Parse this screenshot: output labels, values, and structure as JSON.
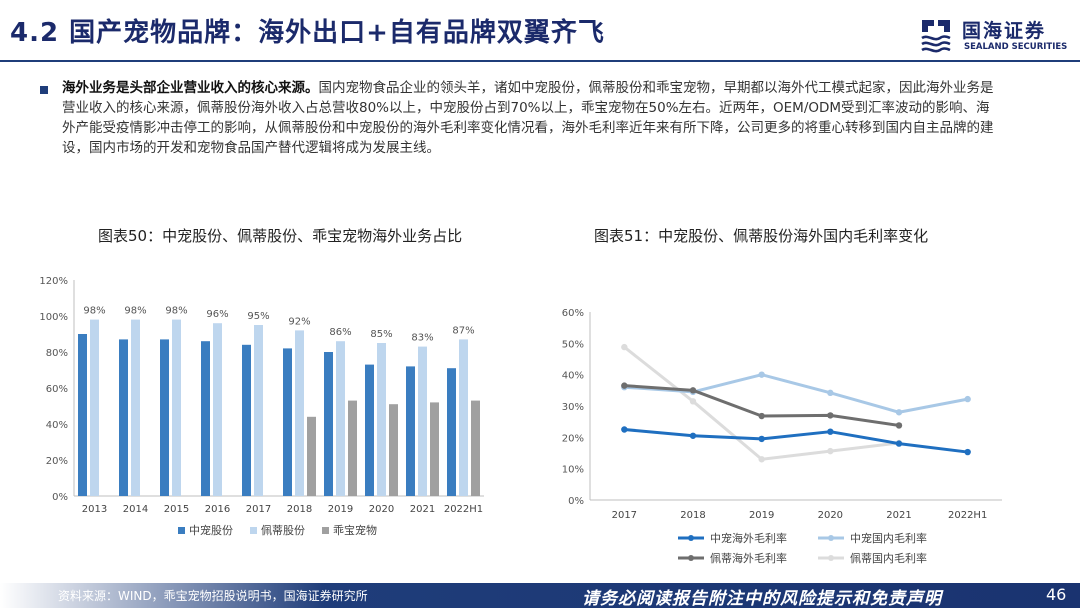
{
  "header": {
    "title": "4.2 国产宠物品牌：海外出口+自有品牌双翼齐飞",
    "logo_cn": "国海证券",
    "logo_en": "SEALAND SECURITIES"
  },
  "summary": {
    "lead": "海外业务是头部企业营业收入的核心来源。",
    "body": "国内宠物食品企业的领头羊，诸如中宠股份，佩蒂股份和乖宝宠物，早期都以海外代工模式起家，因此海外业务是营业收入的核心来源，佩蒂股份海外收入占总营收80%以上，中宠股份占到70%以上，乖宝宠物在50%左右。近两年，OEM/ODM受到汇率波动的影响、海外产能受疫情影冲击停工的影响，从佩蒂股份和中宠股份的海外毛利率变化情况看，海外毛利率近年来有所下降，公司更多的将重心转移到国内自主品牌的建设，国内市场的开发和宠物食品国产替代逻辑将成为发展主线。"
  },
  "chart_data": [
    {
      "type": "bar",
      "title": "图表50：中宠股份、佩蒂股份、乖宝宠物海外业务占比",
      "categories": [
        "2013",
        "2014",
        "2015",
        "2016",
        "2017",
        "2018",
        "2019",
        "2020",
        "2021",
        "2022H1"
      ],
      "ylim": [
        0,
        120
      ],
      "yticks": [
        "0%",
        "20%",
        "40%",
        "60%",
        "80%",
        "100%",
        "120%"
      ],
      "series": [
        {
          "name": "中宠股份",
          "color": "#3a7dc0",
          "values": [
            90,
            87,
            87,
            86,
            84,
            82,
            80,
            73,
            72,
            71
          ]
        },
        {
          "name": "佩蒂股份",
          "color": "#bed6ee",
          "values": [
            98,
            98,
            98,
            96,
            95,
            92,
            86,
            85,
            83,
            87
          ],
          "labels": [
            "98%",
            "98%",
            "98%",
            "96%",
            "95%",
            "92%",
            "86%",
            "85%",
            "83%",
            "87%"
          ]
        },
        {
          "name": "乖宝宠物",
          "color": "#a0a0a0",
          "values": [
            null,
            null,
            null,
            null,
            null,
            44,
            53,
            51,
            52,
            53
          ]
        }
      ],
      "legend_position": "bottom"
    },
    {
      "type": "line",
      "title": "图表51：中宠股份、佩蒂股份海外国内毛利率变化",
      "categories": [
        "2017",
        "2018",
        "2019",
        "2020",
        "2021",
        "2022H1"
      ],
      "ylim": [
        0,
        60
      ],
      "yticks": [
        "0%",
        "10%",
        "20%",
        "30%",
        "40%",
        "50%",
        "60%"
      ],
      "series": [
        {
          "name": "中宠海外毛利率",
          "color": "#1f6fc0",
          "values": [
            22.5,
            20.5,
            19.5,
            21.8,
            18.0,
            15.3
          ]
        },
        {
          "name": "中宠国内毛利率",
          "color": "#a8c8e6",
          "values": [
            36,
            34.5,
            40,
            34.2,
            28,
            32.2
          ]
        },
        {
          "name": "佩蒂海外毛利率",
          "color": "#6e6e6e",
          "values": [
            36.5,
            35,
            26.8,
            27,
            23.8,
            null
          ]
        },
        {
          "name": "佩蒂国内毛利率",
          "color": "#dcdcdc",
          "values": [
            48.8,
            31.5,
            13,
            15.6,
            18.2,
            null
          ]
        }
      ],
      "legend_position": "bottom"
    }
  ],
  "footer": {
    "source": "资料来源：WIND，乖宝宠物招股说明书，国海证券研究所",
    "disclaimer": "请务必阅读报告附注中的风险提示和免责声明",
    "page": "46"
  }
}
